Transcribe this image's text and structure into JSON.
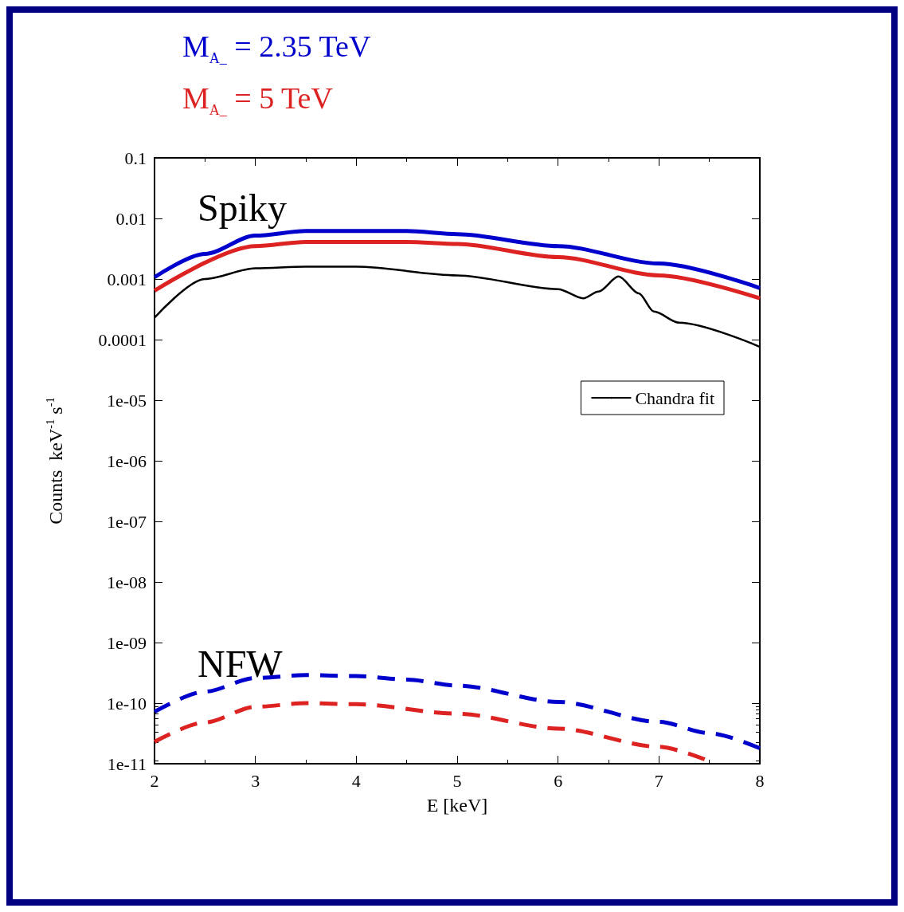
{
  "chart_data": {
    "type": "line",
    "xlabel": "E [keV]",
    "ylabel": "Counts  keV$^{-1}$ s$^{-1}$",
    "log": "y",
    "grid": false,
    "legend": "right",
    "marker": "none",
    "xlim": [
      2,
      8
    ],
    "xticks": [
      2,
      3,
      4,
      5,
      6,
      7,
      8
    ],
    "ylim": [
      1e-11,
      0.1
    ],
    "yticks": [
      {
        "value": 1e-11,
        "label": "1e-11"
      },
      {
        "value": 1e-10,
        "label": "1e-10"
      },
      {
        "value": 1e-09,
        "label": "1e-09"
      },
      {
        "value": 1e-08,
        "label": "1e-08"
      },
      {
        "value": 1e-07,
        "label": "1e-07"
      },
      {
        "value": 1e-06,
        "label": "1e-06"
      },
      {
        "value": 1e-05,
        "label": "1e-05"
      },
      0.0001,
      0.001,
      0.01,
      0.1
    ],
    "annotations": [
      "Spiky",
      "NFW"
    ],
    "series": [
      {
        "name": "M$_{A_}$ = 2.35 TeV",
        "color": "#0000cc",
        "line_style": "solid",
        "x": [
          2,
          2.5,
          3,
          3.5,
          4,
          4.5,
          5,
          6,
          7,
          8
        ],
        "values": [
          0.00107,
          0.0026,
          0.0052,
          0.0062,
          0.0062,
          0.0062,
          0.0055,
          0.0035,
          0.0018,
          0.00071
        ]
      },
      {
        "name": "M$_{A_}$ = 5 TeV",
        "color": "#dd2222",
        "line_style": "solid",
        "x": [
          2,
          3,
          3.5,
          4,
          4.5,
          5,
          6,
          7,
          8
        ],
        "values": [
          0.00064,
          0.0035,
          0.0041,
          0.0041,
          0.0041,
          0.0038,
          0.0023,
          0.00115,
          0.00048
        ]
      },
      {
        "color": "#0000cc",
        "line_style": "dashed",
        "x": [
          2,
          2.5,
          3,
          3.5,
          4,
          4.5,
          5,
          6,
          7,
          7.5,
          8
        ],
        "values": [
          7.2e-11,
          1.55e-10,
          2.6e-10,
          2.9e-10,
          2.8e-10,
          2.45e-10,
          1.95e-10,
          1.05e-10,
          4.9e-11,
          3.2e-11,
          1.8e-11
        ]
      },
      {
        "color": "#dd2222",
        "line_style": "dashed",
        "x": [
          2,
          2.5,
          3,
          3.5,
          4,
          5,
          6,
          7,
          7.5
        ],
        "values": [
          2.3e-11,
          4.8e-11,
          8.7e-11,
          1e-10,
          9.6e-11,
          6.7e-11,
          3.8e-11,
          1.9e-11,
          1.1e-11
        ]
      },
      {
        "name": "Chandra fit",
        "color": "#000000",
        "line_style": "solid",
        "x": [
          2,
          2.5,
          3,
          3.5,
          4,
          5,
          6,
          6.25,
          6.4,
          6.6,
          6.8,
          6.95,
          7.2,
          8
        ],
        "values": [
          0.00023,
          0.001,
          0.0015,
          0.0016,
          0.0016,
          0.00115,
          0.00068,
          0.00048,
          0.00062,
          0.0011,
          0.00058,
          0.00029,
          0.00019,
          7.6e-05
        ]
      }
    ]
  }
}
